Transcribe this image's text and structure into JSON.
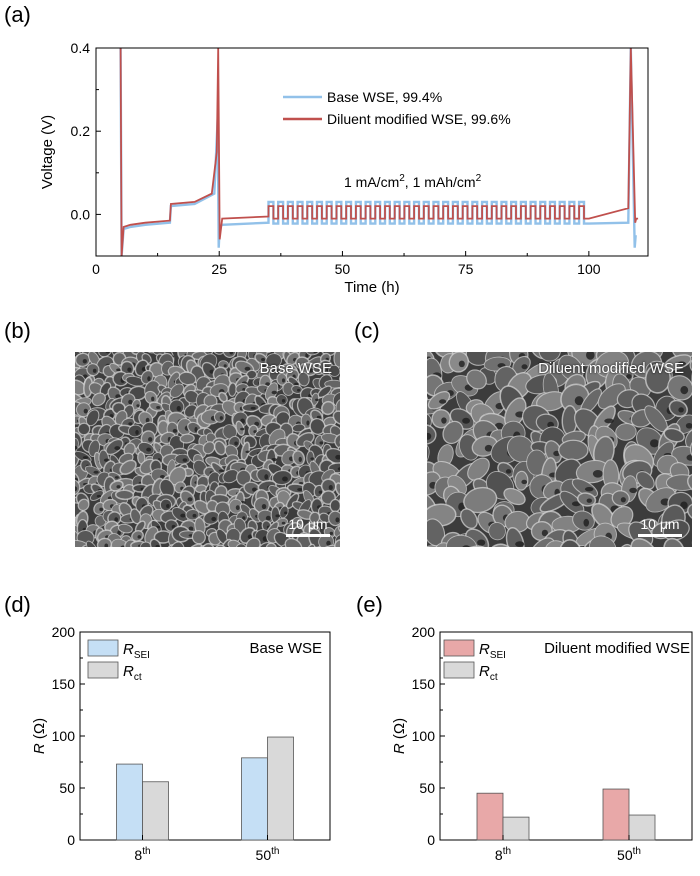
{
  "panels": {
    "a": "(a)",
    "b": "(b)",
    "c": "(c)",
    "d": "(d)",
    "e": "(e)"
  },
  "sem": {
    "b": {
      "title": "Base WSE",
      "scale": "10 μm"
    },
    "c": {
      "title": "Diluent modified WSE",
      "scale": "10 μm"
    }
  },
  "chart_data": [
    {
      "type": "line",
      "xlabel": "Time (h)",
      "ylabel": "Voltage (V)",
      "xlim": [
        0,
        112
      ],
      "ylim": [
        -0.1,
        0.4
      ],
      "xticks": [
        "0",
        "25",
        "50",
        "75",
        "100"
      ],
      "yticks": [
        "0.0",
        "0.2",
        "0.4"
      ],
      "annotation": "1 mA/cm², 1 mAh/cm²",
      "legend_position": "top-right",
      "series": [
        {
          "name": "Base WSE, 99.4%",
          "color": "#92c1e9",
          "x": [
            5,
            5.2,
            5.6,
            7,
            10,
            15,
            15.2,
            20,
            24,
            24.7,
            24.9,
            25.1,
            25.6,
            35,
            108,
            108.5,
            109.3,
            109.5
          ],
          "y": [
            0.4,
            -0.1,
            -0.035,
            -0.03,
            -0.025,
            -0.02,
            0.02,
            0.025,
            0.05,
            0.23,
            -0.08,
            -0.03,
            -0.025,
            -0.02,
            -0.02,
            0.4,
            -0.08,
            -0.05
          ],
          "square_wave": {
            "x_start": 35,
            "x_end": 100,
            "cycles": 33,
            "high": 0.03,
            "low": -0.022
          }
        },
        {
          "name": "Diluent modified WSE, 99.6%",
          "color": "#c0504d",
          "x": [
            5,
            5.2,
            5.6,
            7,
            10,
            15,
            15.2,
            20,
            23.5,
            24.5,
            24.8,
            25.1,
            25.6,
            35,
            108,
            108.5,
            109.4,
            109.6,
            110
          ],
          "y": [
            0.4,
            -0.1,
            -0.03,
            -0.025,
            -0.02,
            -0.015,
            0.025,
            0.03,
            0.05,
            0.15,
            0.4,
            -0.06,
            -0.01,
            -0.005,
            0.015,
            0.4,
            -0.02,
            -0.01,
            -0.01
          ],
          "square_wave": {
            "x_start": 35,
            "x_end": 100,
            "cycles": 33,
            "high": 0.02,
            "low": -0.01
          }
        }
      ]
    },
    {
      "type": "bar",
      "title": "Base WSE",
      "ylabel": "R (Ω)",
      "ylim": [
        0,
        200
      ],
      "yticks": [
        "0",
        "50",
        "100",
        "150",
        "200"
      ],
      "categories": [
        {
          "base": "8",
          "sup": "th"
        },
        {
          "base": "50",
          "sup": "th"
        }
      ],
      "legend_position": "top-left",
      "series": [
        {
          "name": "R",
          "sub": "SEI",
          "color": "#c5dff5",
          "values": [
            73,
            79
          ]
        },
        {
          "name": "R",
          "sub": "ct",
          "color": "#d9d9d9",
          "values": [
            56,
            99
          ]
        }
      ]
    },
    {
      "type": "bar",
      "title": "Diluent modified WSE",
      "ylabel": "R (Ω)",
      "ylim": [
        0,
        200
      ],
      "yticks": [
        "0",
        "50",
        "100",
        "150",
        "200"
      ],
      "categories": [
        {
          "base": "8",
          "sup": "th"
        },
        {
          "base": "50",
          "sup": "th"
        }
      ],
      "legend_position": "top-left",
      "series": [
        {
          "name": "R",
          "sub": "SEI",
          "color": "#e8a8a8",
          "values": [
            45,
            49
          ]
        },
        {
          "name": "R",
          "sub": "ct",
          "color": "#d9d9d9",
          "values": [
            22,
            24
          ]
        }
      ]
    }
  ]
}
